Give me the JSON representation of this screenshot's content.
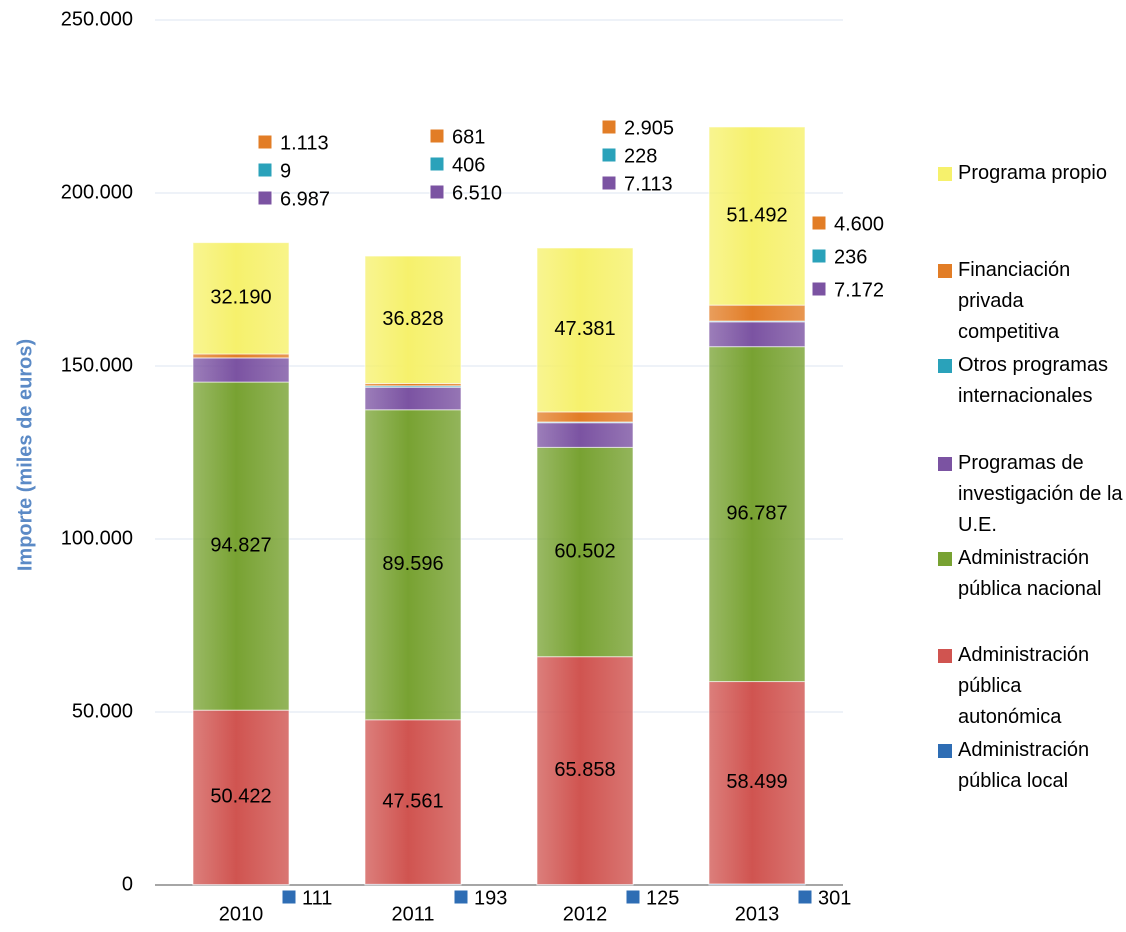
{
  "chart_data": {
    "type": "stacked_bar",
    "y_label": "Importe (miles de euros)",
    "categories": [
      "2010",
      "2011",
      "2012",
      "2013"
    ],
    "ylim": [
      0,
      250000
    ],
    "yticks": [
      0,
      {
        "value": 50000,
        "label": "50.000"
      },
      {
        "value": 100000,
        "label": "100.000"
      },
      {
        "value": 150000,
        "label": "150.000"
      },
      {
        "value": 200000,
        "label": "200.000"
      },
      {
        "value": 250000,
        "label": "250.000"
      }
    ],
    "grid": true,
    "legend": "right",
    "series": [
      {
        "name": "Administración pública local",
        "color": "#2e6db4",
        "values": [
          111,
          193,
          125,
          301
        ],
        "value_labels": [
          "111",
          "193",
          "125",
          "301"
        ]
      },
      {
        "name": "Administración pública autonómica",
        "color": "#d05450",
        "values": [
          50422,
          47561,
          65858,
          58499
        ],
        "value_labels": [
          "50.422",
          "47.561",
          "65.858",
          "58.499"
        ]
      },
      {
        "name": "Administración pública nacional",
        "color": "#78a232",
        "values": [
          94827,
          89596,
          60502,
          96787
        ],
        "value_labels": [
          "94.827",
          "89.596",
          "60.502",
          "96.787"
        ]
      },
      {
        "name": "Programas de investigación de la U.E.",
        "color": "#7b53a2",
        "values": [
          6987,
          6510,
          7113,
          7172
        ],
        "value_labels": [
          "6.987",
          "6.510",
          "7.113",
          "7.172"
        ]
      },
      {
        "name": "Otros programas internacionales",
        "color": "#2aa2ba",
        "values": [
          9,
          406,
          228,
          236
        ],
        "value_labels": [
          "9",
          "406",
          "228",
          "236"
        ]
      },
      {
        "name": "Financiación privada competitiva",
        "color": "#e27d26",
        "values": [
          1113,
          681,
          2905,
          4600
        ],
        "value_labels": [
          "1.113",
          "681",
          "2.905",
          "4.600"
        ]
      },
      {
        "name": "Programa propio",
        "color": "#f6f16c",
        "values": [
          32190,
          36828,
          47381,
          51492
        ],
        "value_labels": [
          "32.190",
          "36.828",
          "47.381",
          "51.492"
        ]
      }
    ]
  }
}
